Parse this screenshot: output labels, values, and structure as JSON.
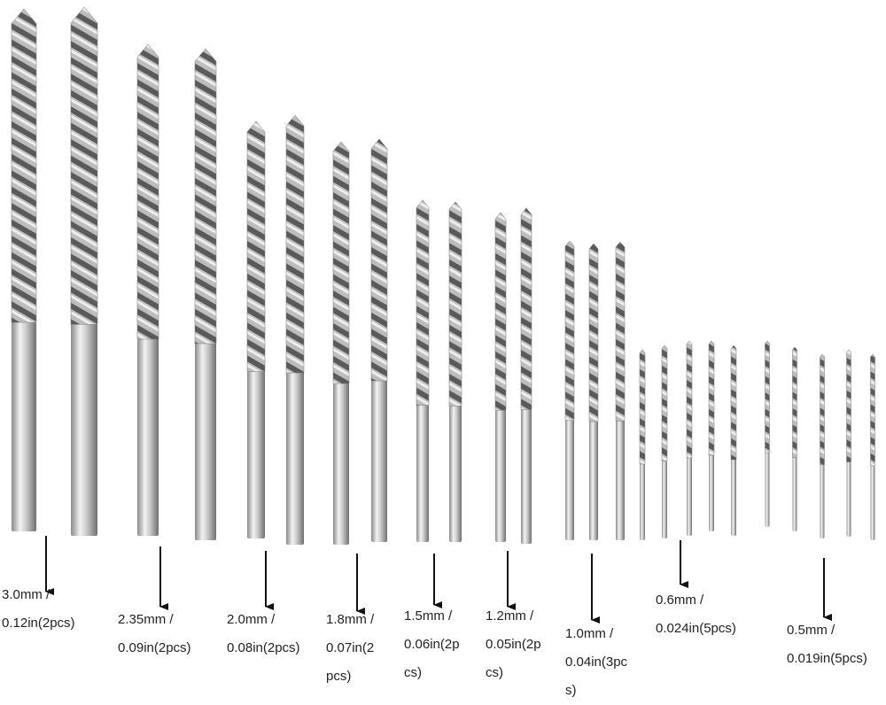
{
  "labels": [
    {
      "lines": [
        "3.0mm /",
        "0.12in(2pcs)"
      ]
    },
    {
      "lines": [
        "2.35mm /",
        "0.09in(2pcs)"
      ]
    },
    {
      "lines": [
        "2.0mm /",
        "0.08in(2pcs)"
      ]
    },
    {
      "lines": [
        "1.8mm /",
        "0.07in(2",
        "pcs)"
      ]
    },
    {
      "lines": [
        "1.5mm /",
        "0.06in(2p",
        "cs)"
      ]
    },
    {
      "lines": [
        "1.2mm /",
        "0.05in(2p",
        "cs)"
      ]
    },
    {
      "lines": [
        "1.0mm /",
        "0.04in(3pc",
        "s)"
      ]
    },
    {
      "lines": [
        "0.6mm /",
        "0.024in(5pcs)"
      ]
    },
    {
      "lines": [
        "0.5mm /",
        "0.019in(5pcs)"
      ]
    }
  ]
}
